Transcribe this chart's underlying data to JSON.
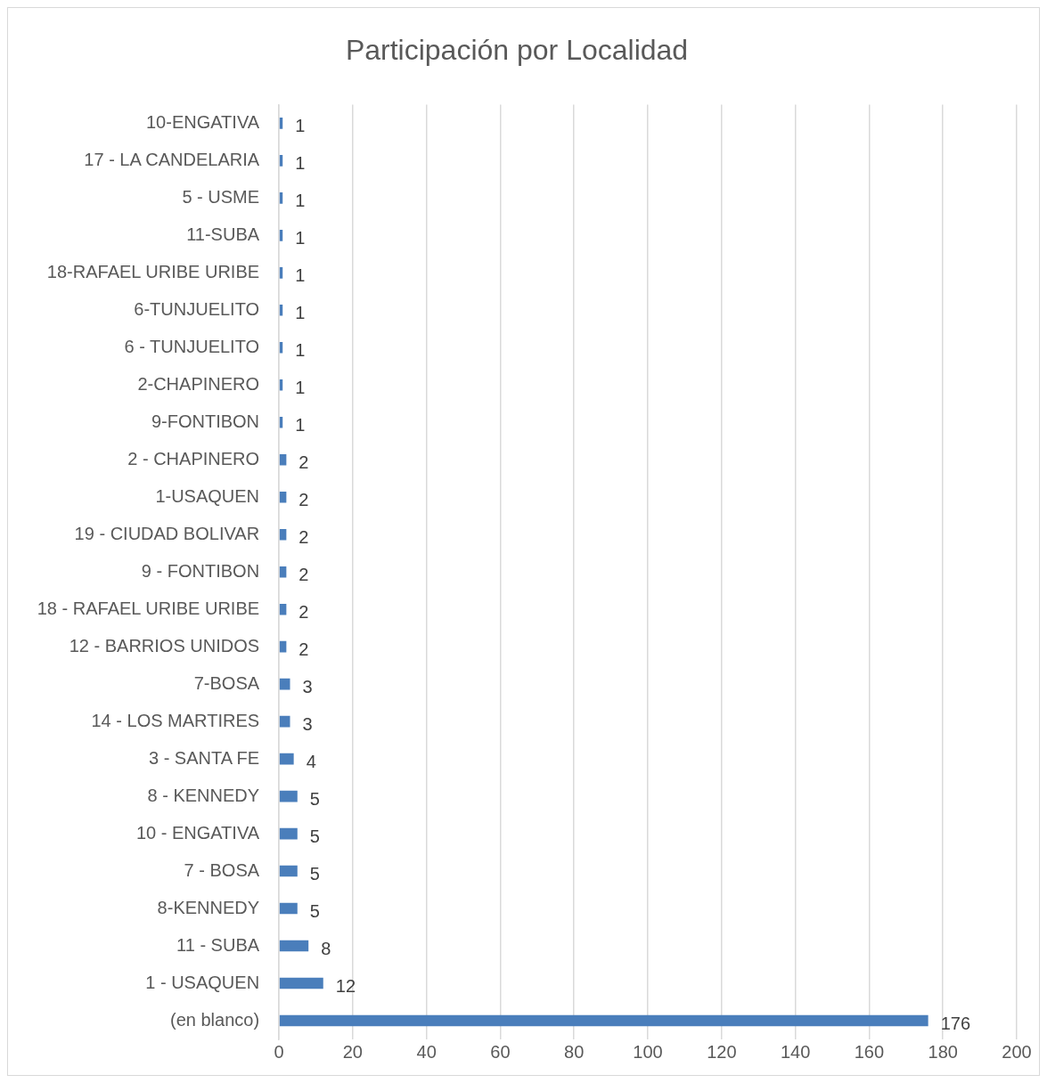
{
  "chart_data": {
    "type": "bar",
    "orientation": "horizontal",
    "title": "Participación por Localidad",
    "categories": [
      "10-ENGATIVA",
      "17 - LA CANDELARIA",
      "5 - USME",
      "11-SUBA",
      "18-RAFAEL URIBE URIBE",
      "6-TUNJUELITO",
      "6 - TUNJUELITO",
      "2-CHAPINERO",
      "9-FONTIBON",
      "2 - CHAPINERO",
      "1-USAQUEN",
      "19 - CIUDAD BOLIVAR",
      "9 - FONTIBON",
      "18 - RAFAEL URIBE URIBE",
      "12 - BARRIOS UNIDOS",
      "7-BOSA",
      "14 - LOS MARTIRES",
      "3 - SANTA FE",
      "8 - KENNEDY",
      "10 - ENGATIVA",
      "7 - BOSA",
      "8-KENNEDY",
      "11 - SUBA",
      "1 - USAQUEN",
      "(en blanco)"
    ],
    "values": [
      1,
      1,
      1,
      1,
      1,
      1,
      1,
      1,
      1,
      2,
      2,
      2,
      2,
      2,
      2,
      3,
      3,
      4,
      5,
      5,
      5,
      5,
      8,
      12,
      176
    ],
    "color": "#4a7ebb",
    "xlim": [
      0,
      200
    ],
    "xticks": [
      0,
      20,
      40,
      60,
      80,
      100,
      120,
      140,
      160,
      180,
      200
    ],
    "grid": "x",
    "data_labels": true
  }
}
